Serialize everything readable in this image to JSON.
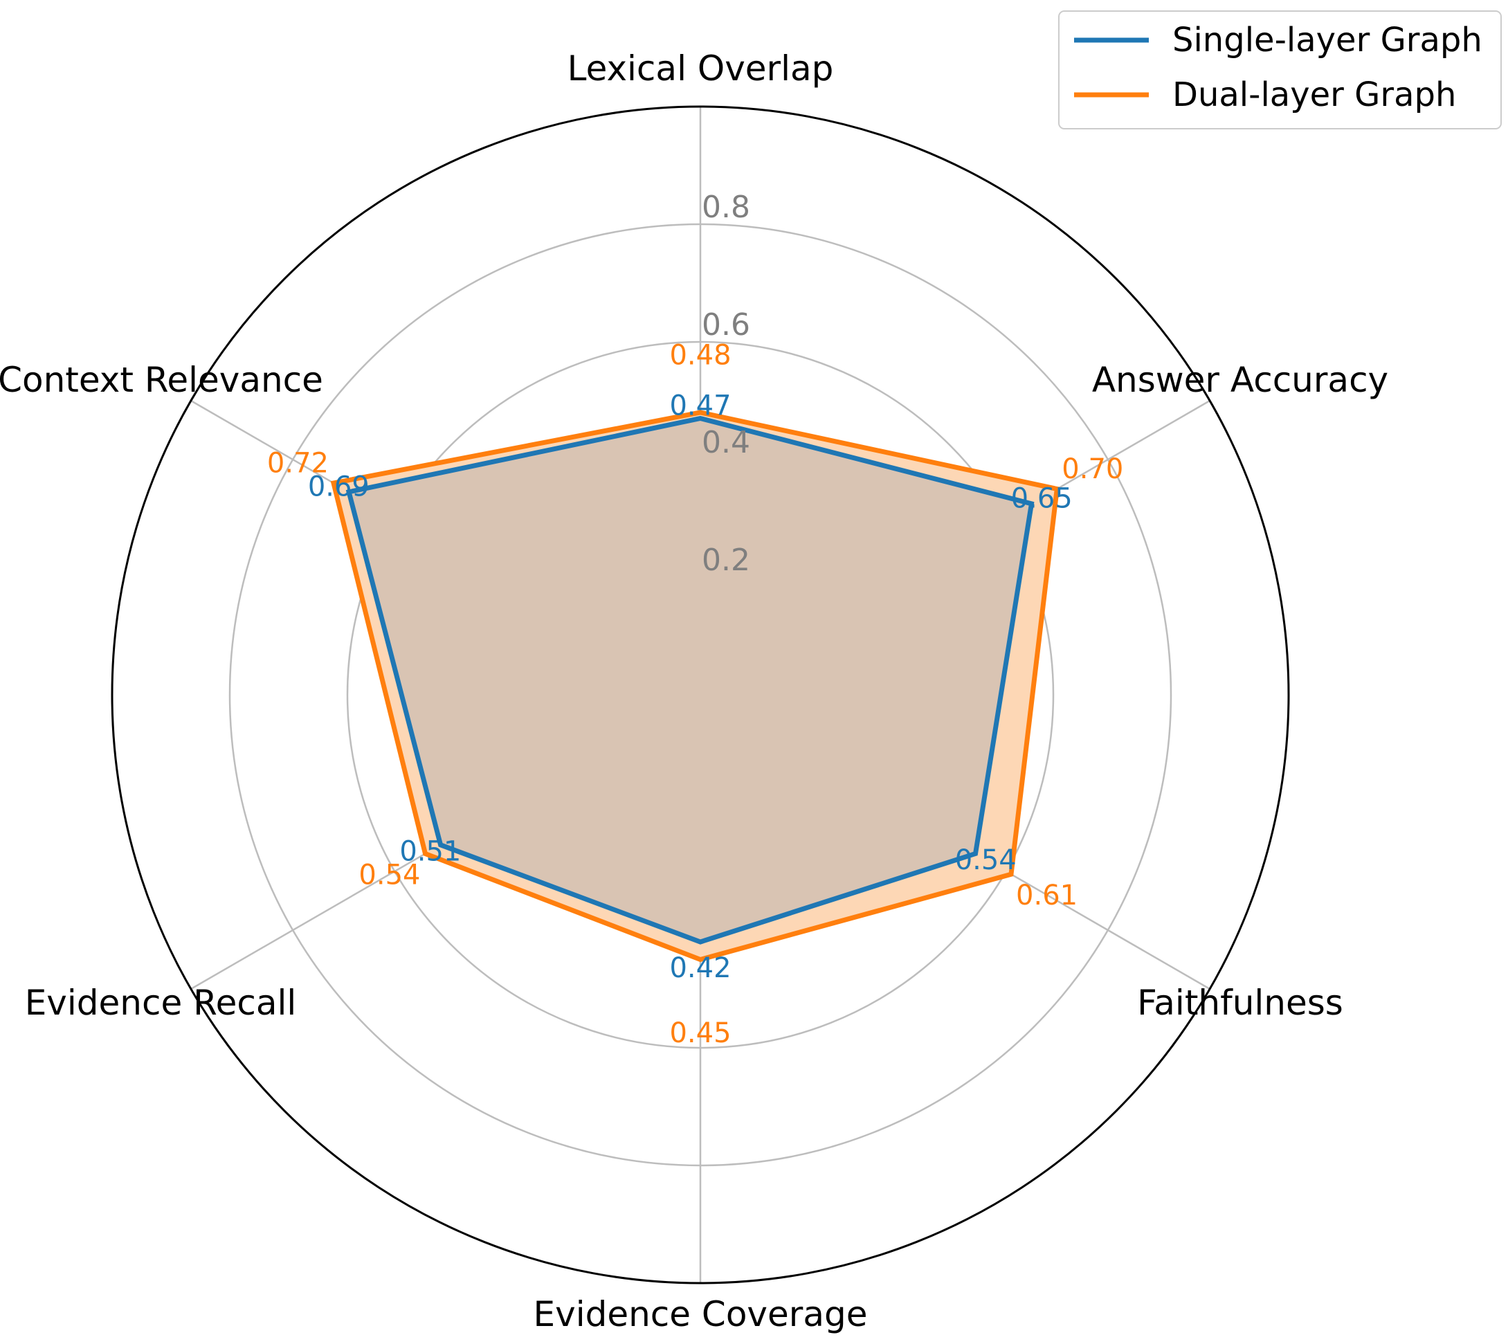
{
  "chart_data": {
    "type": "radar",
    "axes": [
      "Lexical Overlap",
      "Answer Accuracy",
      "Faithfulness",
      "Evidence Coverage",
      "Evidence Recall",
      "Context Relevance"
    ],
    "rlim": [
      0,
      1.0
    ],
    "rticks": [
      0.2,
      0.4,
      0.6,
      0.8
    ],
    "rtick_labels": [
      "0.2",
      "0.4",
      "0.6",
      "0.8"
    ],
    "grid": true,
    "legend_position": "top-right",
    "series": [
      {
        "name": "Single-layer Graph",
        "color": "#1f77b4",
        "values": [
          0.47,
          0.65,
          0.54,
          0.42,
          0.51,
          0.69
        ],
        "labels": [
          "0.47",
          "0.65",
          "0.54",
          "0.42",
          "0.51",
          "0.69"
        ]
      },
      {
        "name": "Dual-layer Graph",
        "color": "#ff7f0e",
        "values": [
          0.48,
          0.7,
          0.61,
          0.45,
          0.54,
          0.72
        ],
        "labels": [
          "0.48",
          "0.70",
          "0.61",
          "0.45",
          "0.54",
          "0.72"
        ]
      }
    ]
  },
  "colors": {
    "grid": "#bdbdbd",
    "outer_ring": "#000000",
    "tick_label": "#7f7f7f",
    "fill_blend": "#d5c2b2"
  }
}
